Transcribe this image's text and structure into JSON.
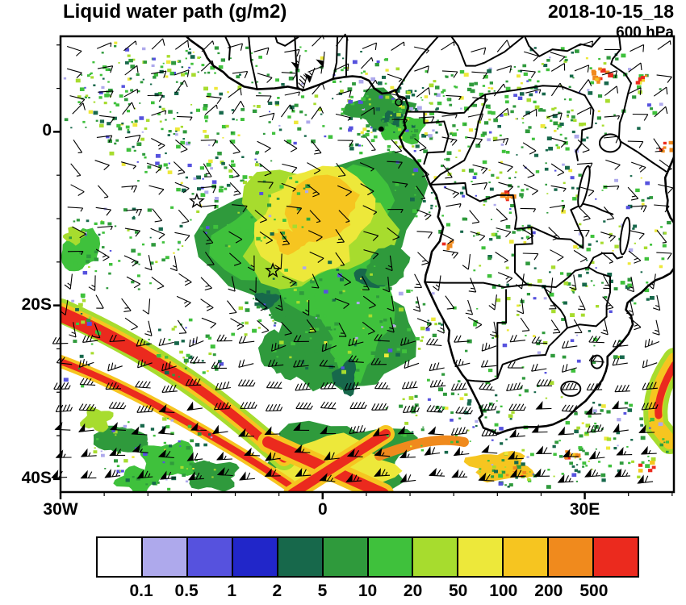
{
  "header": {
    "title": "Liquid water path (g/m2)",
    "datetime": "2018-10-15_18",
    "level": "600 hPa"
  },
  "axes": {
    "x_ticks": [
      {
        "label": "30W",
        "lon": -30
      },
      {
        "label": "0",
        "lon": 0
      },
      {
        "label": "30E",
        "lon": 30
      }
    ],
    "y_ticks": [
      {
        "label": "0",
        "lat": 0
      },
      {
        "label": "20S",
        "lat": -20
      },
      {
        "label": "40S",
        "lat": -40
      }
    ],
    "lon_range": [
      -30,
      40.2
    ],
    "lat_range": [
      -41.5,
      11
    ]
  },
  "colorbar": {
    "levels": [
      "0.1",
      "0.5",
      "1",
      "2",
      "5",
      "10",
      "20",
      "50",
      "100",
      "200",
      "500"
    ],
    "colors": [
      "#FFFFFF",
      "#AEA9EC",
      "#5652DE",
      "#2126C9",
      "#17684B",
      "#2F9A3C",
      "#3FC13C",
      "#A7DC2E",
      "#EDE83A",
      "#F6C520",
      "#F08A1D",
      "#EB2A1E"
    ]
  },
  "chart_data": {
    "type": "heatmap",
    "title": "Liquid water path (g/m2)",
    "variable": "liquid water path",
    "units": "g/m2",
    "pressure_level": "600 hPa",
    "valid_time": "2018-10-15_18",
    "projection": "cylindrical lat-lon, South Atlantic / southern Africa",
    "lon_range_deg": [
      -30,
      40
    ],
    "lat_range_deg": [
      -41.5,
      11
    ],
    "shading_levels_g_m2": [
      0.1,
      0.5,
      1,
      2,
      5,
      10,
      20,
      50,
      100,
      200,
      500
    ],
    "palette": [
      "#FFFFFF",
      "#AEA9EC",
      "#5652DE",
      "#2126C9",
      "#17684B",
      "#2F9A3C",
      "#3FC13C",
      "#A7DC2E",
      "#EDE83A",
      "#F6C520",
      "#F08A1D",
      "#EB2A1E"
    ],
    "overlays": [
      "wind barbs (kt)",
      "coastlines",
      "country borders",
      "lakes"
    ],
    "markers": [
      {
        "symbol": "star",
        "lon": -14.4,
        "lat": -8.0
      },
      {
        "symbol": "star",
        "lon": -5.7,
        "lat": -16.0
      },
      {
        "symbol": "dot",
        "lon": 6.7,
        "lat": 0.3
      }
    ],
    "features": [
      {
        "name": "marine stratocumulus deck maximum",
        "center_lon": -1,
        "center_lat": -11,
        "value_g_m2": "50-200"
      },
      {
        "name": "green fringe of deck extending south",
        "center_lon": 1,
        "center_lat": -16,
        "value_g_m2": "10-50"
      },
      {
        "name": "frontal cloud band entering SW corner",
        "path_lon_lat": [
          [
            -30,
            -29
          ],
          [
            -22,
            -34
          ],
          [
            -16,
            -38
          ],
          [
            -12,
            -41
          ]
        ],
        "value_g_m2": "200-500"
      },
      {
        "name": "second frontal band segment",
        "path_lon_lat": [
          [
            -30,
            -34
          ],
          [
            -20,
            -39
          ],
          [
            -14,
            -41.5
          ]
        ],
        "value_g_m2": "100-500"
      },
      {
        "name": "cloud mass crossing bottom edge near 0E",
        "center_lon": -1,
        "center_lat": -40,
        "value_g_m2": "200-500"
      },
      {
        "name": "band at eastern boundary",
        "path_lon_lat": [
          [
            40,
            -26
          ],
          [
            37.8,
            -31
          ],
          [
            38.2,
            -34
          ]
        ],
        "value_g_m2": "100-500"
      },
      {
        "name": "broken cloud patches SW sector",
        "center_lon": -22,
        "center_lat": -37,
        "value_g_m2": "10-50"
      },
      {
        "name": "scattered convection over Congo basin",
        "center_lon": 18,
        "center_lat": -3,
        "value_g_m2": "1-50"
      },
      {
        "name": "speckled ITCZ band along top of domain",
        "center_lat": 5,
        "lon_span": [
          -28,
          15
        ],
        "value_g_m2": "0.5-20"
      },
      {
        "name": "clear subtropical high region",
        "center_lon": -18,
        "center_lat": -25,
        "value_g_m2": "< 0.1"
      }
    ],
    "winds": {
      "symbol": "wind barbs",
      "units": "kt",
      "tropics": "light 5-15 kt, variable easterly/southeasterly",
      "midlatitudes": "strong westerlies 35-65 kt south of 30S (pennants)"
    }
  }
}
